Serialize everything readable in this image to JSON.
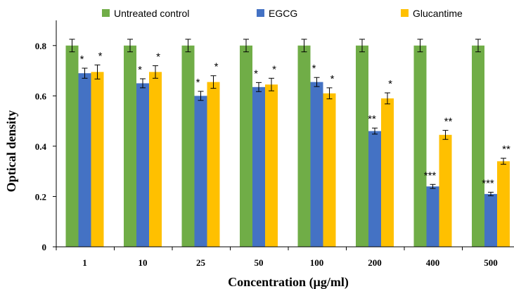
{
  "chart_data": {
    "type": "bar",
    "xlabel": "Concentration (µg/ml)",
    "ylabel": "Optical density",
    "categories": [
      "1",
      "10",
      "25",
      "50",
      "100",
      "200",
      "400",
      "500"
    ],
    "ylim": [
      0,
      0.9
    ],
    "yticks": [
      "0",
      "0.2",
      "0.4",
      "0.6",
      "0.8"
    ],
    "grid": false,
    "legend_position": "top",
    "series": [
      {
        "name": "Untreated control",
        "color": "#70AD47",
        "values": [
          0.8,
          0.8,
          0.8,
          0.8,
          0.8,
          0.8,
          0.8,
          0.8
        ],
        "errors": [
          0.025,
          0.025,
          0.025,
          0.025,
          0.025,
          0.025,
          0.025,
          0.025
        ],
        "significance": [
          "",
          "",
          "",
          "",
          "",
          "",
          "",
          ""
        ]
      },
      {
        "name": "EGCG",
        "color": "#4472C4",
        "values": [
          0.69,
          0.65,
          0.6,
          0.635,
          0.655,
          0.46,
          0.24,
          0.21
        ],
        "errors": [
          0.02,
          0.018,
          0.018,
          0.018,
          0.018,
          0.012,
          0.008,
          0.007
        ],
        "significance": [
          "*",
          "*",
          "*",
          "*",
          "*",
          "**",
          "***",
          "***"
        ]
      },
      {
        "name": "Glucantime",
        "color": "#FFC000",
        "values": [
          0.695,
          0.695,
          0.655,
          0.645,
          0.61,
          0.59,
          0.445,
          0.34
        ],
        "errors": [
          0.028,
          0.025,
          0.025,
          0.025,
          0.022,
          0.022,
          0.018,
          0.012
        ],
        "significance": [
          "*",
          "*",
          "*",
          "*",
          "*",
          "*",
          "**",
          "**"
        ]
      }
    ]
  }
}
